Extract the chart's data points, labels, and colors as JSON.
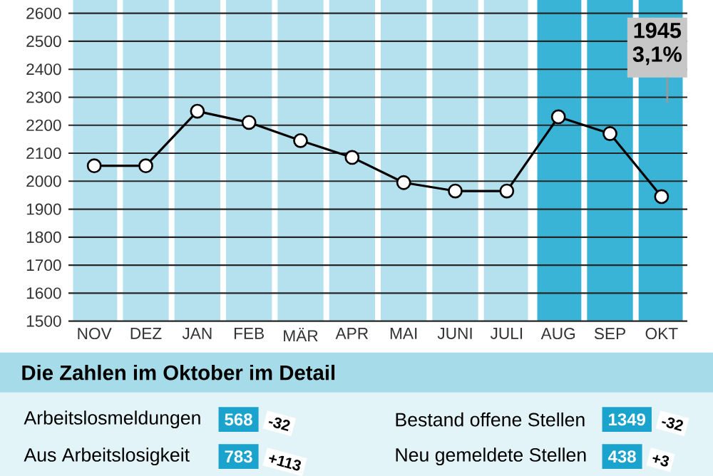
{
  "chart_data": {
    "type": "line",
    "categories": [
      "NOV",
      "DEZ",
      "JAN",
      "FEB",
      "MÄR",
      "APR",
      "MAI",
      "JUNI",
      "JULI",
      "AUG",
      "SEP",
      "OKT"
    ],
    "series": [
      {
        "color": "#000000",
        "values": [
          2055,
          2055,
          2250,
          2210,
          2145,
          2085,
          1995,
          1965,
          1965,
          2230,
          2170,
          1945
        ]
      }
    ],
    "ylim": [
      1500,
      2600
    ],
    "yticks": [
      1500,
      1600,
      1700,
      1800,
      1900,
      2000,
      2100,
      2200,
      2300,
      2400,
      2500,
      2600
    ],
    "grid": "y",
    "marker": "circle",
    "line_style": "solid",
    "bands": [
      {
        "axis": "x",
        "from": "NOV",
        "to": "JULI",
        "color": "#b5e1ee"
      },
      {
        "axis": "x",
        "from": "AUG",
        "to": "OKT",
        "color": "#3ab4d6"
      }
    ],
    "annotations": [
      "Die Zahlen im Oktober im Detail",
      "Arbeitslosmeldungen",
      "568",
      "-32",
      "Bestand offene Stellen",
      "1349",
      "-32",
      "Aus Arbeitslosigkeit",
      "783",
      "+113",
      "Neu gemeldete Stellen",
      "438",
      "+3",
      "1945",
      "3,1%"
    ]
  }
}
